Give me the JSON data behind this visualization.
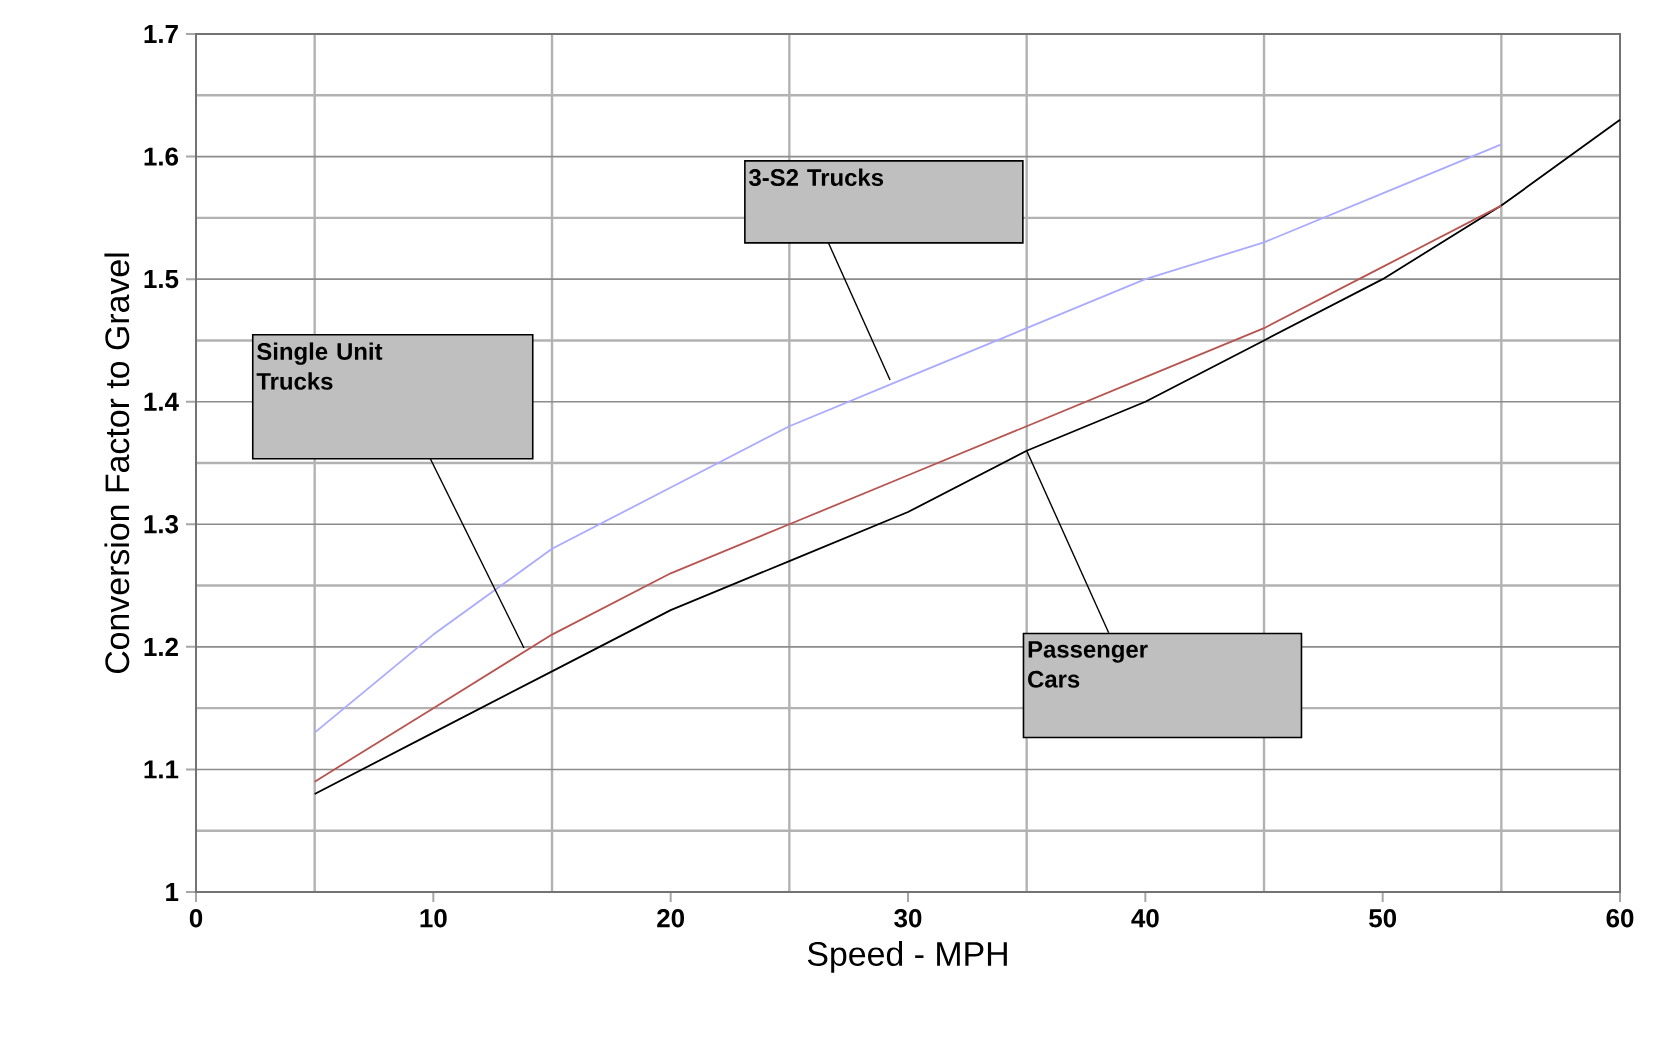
{
  "chart_data": {
    "type": "line",
    "xlabel": "Speed - MPH",
    "ylabel": "Conversion Factor to Gravel",
    "x": [
      5,
      10,
      15,
      20,
      25,
      30,
      35,
      40,
      45,
      50,
      55,
      60
    ],
    "series": [
      {
        "color": "#000000",
        "values": [
          1.08,
          1.13,
          1.18,
          1.23,
          1.27,
          1.31,
          1.36,
          1.4,
          1.45,
          1.5,
          1.56,
          1.63
        ]
      },
      {
        "color": "#b85450",
        "values": [
          1.09,
          1.15,
          1.21,
          1.26,
          1.3,
          1.34,
          1.38,
          1.42,
          1.46,
          1.51,
          1.56,
          null
        ]
      },
      {
        "color": "#aaaaff",
        "values": [
          1.13,
          1.21,
          1.28,
          1.33,
          1.38,
          1.42,
          1.46,
          1.5,
          1.53,
          1.57,
          1.61,
          null
        ]
      }
    ],
    "xlim": [
      0,
      60
    ],
    "xticks": [
      0,
      10,
      20,
      30,
      40,
      50,
      60
    ],
    "ylim": [
      1,
      1.7
    ],
    "yticks": [
      1,
      1.1,
      1.2,
      1.3,
      1.4,
      1.5,
      1.6,
      1.7
    ],
    "grid": true,
    "annotations": [
      {
        "text": "Passenger Cars",
        "x": 35,
        "y": 1.36
      },
      "Single Unit Trucks",
      "3-S2 Trucks"
    ]
  }
}
